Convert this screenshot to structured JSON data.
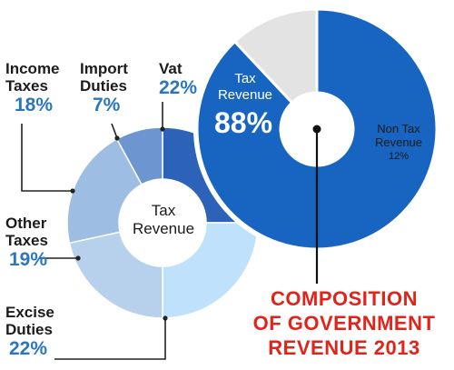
{
  "chart_data": [
    {
      "type": "pie",
      "variant": "donut",
      "center_label": "Tax Revenue",
      "categories": [
        "Vat",
        "Excise Duties",
        "Other Taxes",
        "Income Taxes",
        "Import Duties"
      ],
      "values": [
        22,
        22,
        19,
        18,
        7
      ],
      "display_labels": [
        {
          "name": "Income Taxes",
          "line1": "Income",
          "line2": "Taxes",
          "pct": "18%"
        },
        {
          "name": "Import Duties",
          "line1": "Import",
          "line2": "Duties",
          "pct": "7%"
        },
        {
          "name": "Vat",
          "line1": "Vat",
          "line2": "",
          "pct": "22%"
        },
        {
          "name": "Other Taxes",
          "line1": "Other",
          "line2": "Taxes",
          "pct": "19%"
        },
        {
          "name": "Excise Duties",
          "line1": "Excise",
          "line2": "Duties",
          "pct": "22%"
        }
      ],
      "colors": [
        "#2c63b8",
        "#bfe1fb",
        "#b7d0ec",
        "#9dbee2",
        "#6d95cf"
      ]
    },
    {
      "type": "pie",
      "variant": "donut",
      "categories": [
        "Tax Revenue",
        "Non Tax Revenue"
      ],
      "values": [
        88,
        12
      ],
      "display_labels": [
        {
          "line1": "Tax",
          "line2": "Revenue",
          "pct": "88%"
        },
        {
          "line1": "Non Tax",
          "line2": "Revenue",
          "pct": "12%"
        }
      ],
      "colors": [
        "#1765c0",
        "#e3e3e3"
      ]
    }
  ],
  "title_lines": [
    "COMPOSITION",
    "OF GOVERNMENT",
    "REVENUE 2013"
  ],
  "colors": {
    "title": "#e2231a",
    "percent": "#2a76c0"
  }
}
